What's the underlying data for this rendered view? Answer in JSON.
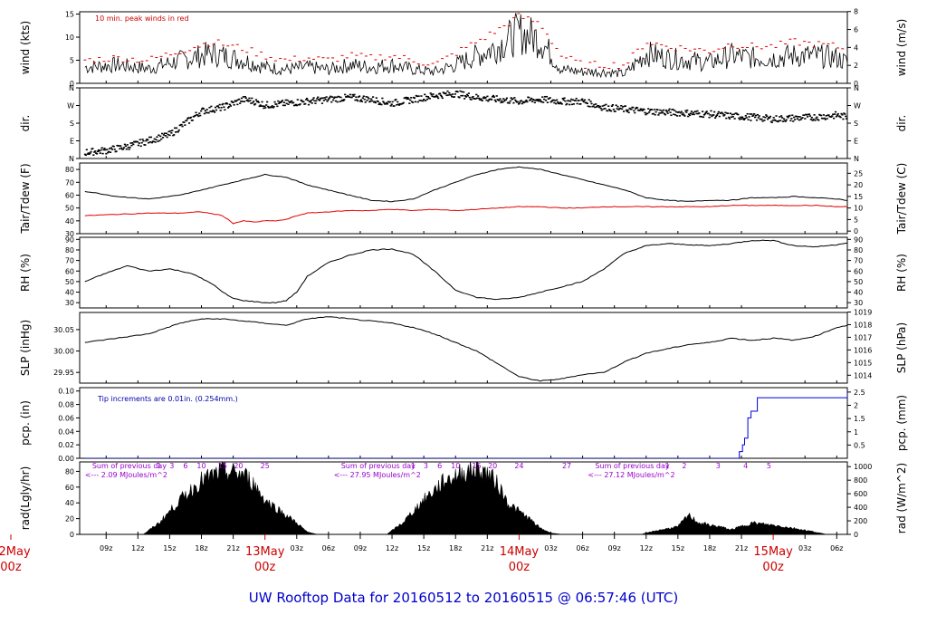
{
  "title": "UW Rooftop Data for 20160512  to  20160515 @ 06:57:46  (UTC)",
  "colors": {
    "black": "#000000",
    "red": "#e00000",
    "blue": "#0000dd",
    "purple": "#9900cc",
    "title": "#0000cc"
  },
  "x_axis": {
    "range_hours": [
      -17.5,
      55
    ],
    "tick_labels": [
      {
        "h": -15,
        "label": "09z"
      },
      {
        "h": -12,
        "label": "12z"
      },
      {
        "h": -9,
        "label": "15z"
      },
      {
        "h": -6,
        "label": "18z"
      },
      {
        "h": -3,
        "label": "21z"
      },
      {
        "h": 3,
        "label": "03z"
      },
      {
        "h": 6,
        "label": "06z"
      },
      {
        "h": 9,
        "label": "09z"
      },
      {
        "h": 12,
        "label": "12z"
      },
      {
        "h": 15,
        "label": "15z"
      },
      {
        "h": 18,
        "label": "18z"
      },
      {
        "h": 21,
        "label": "21z"
      },
      {
        "h": 27,
        "label": "03z"
      },
      {
        "h": 30,
        "label": "06z"
      },
      {
        "h": 33,
        "label": "09z"
      },
      {
        "h": 36,
        "label": "12z"
      },
      {
        "h": 39,
        "label": "15z"
      },
      {
        "h": 42,
        "label": "18z"
      },
      {
        "h": 45,
        "label": "21z"
      },
      {
        "h": 51,
        "label": "03z"
      },
      {
        "h": 54,
        "label": "06z"
      }
    ],
    "day_labels": [
      {
        "h": -24,
        "line1": "12May",
        "line2": "00z"
      },
      {
        "h": 0,
        "line1": "13May",
        "line2": "00z"
      },
      {
        "h": 24,
        "line1": "14May",
        "line2": "00z"
      },
      {
        "h": 48,
        "line1": "15May",
        "line2": "00z"
      }
    ]
  },
  "chart_data": [
    {
      "id": "wind",
      "type": "line",
      "ylabel": "wind (kts)",
      "ylabel_right": "wind (m/s)",
      "ylim": [
        0,
        15.5
      ],
      "yticks": [
        0,
        5,
        10,
        15
      ],
      "yticks_right": [
        0,
        2,
        4,
        6,
        8
      ],
      "right_factor": 1.944,
      "annotation": "10 min. peak winds in red",
      "series": [
        {
          "name": "speed",
          "color": "#000000",
          "x": [
            -17,
            -14,
            -11,
            -8,
            -5,
            -2,
            0,
            2,
            4,
            6,
            8,
            10,
            12,
            14,
            16,
            18,
            20,
            22,
            24,
            26,
            28,
            30,
            32,
            34,
            36,
            38,
            40,
            42,
            44,
            46,
            48,
            50,
            52,
            54,
            55
          ],
          "y": [
            3.5,
            4,
            3.2,
            5,
            6.5,
            5,
            3.5,
            3,
            3.5,
            3,
            4,
            3.5,
            4,
            3,
            2.5,
            4,
            6,
            8,
            11,
            9.5,
            3,
            2.5,
            2.5,
            2,
            6.5,
            5.5,
            5,
            4.5,
            6,
            5.5,
            5.5,
            6,
            6,
            5.5,
            4.5
          ]
        },
        {
          "name": "peak",
          "color": "#e00000",
          "x": [
            -17,
            -14,
            -11,
            -8,
            -5,
            -2,
            0,
            2,
            4,
            6,
            8,
            10,
            12,
            14,
            16,
            18,
            20,
            22,
            24,
            26,
            28,
            30,
            32,
            34,
            36,
            38,
            40,
            42,
            44,
            46,
            48,
            50,
            52,
            54,
            55
          ],
          "y": [
            5,
            5.5,
            5,
            7,
            9,
            7.5,
            6,
            5,
            5.5,
            5,
            6,
            5.5,
            6,
            5,
            4,
            6.5,
            9,
            11.5,
            14.5,
            13,
            6,
            4,
            4,
            4,
            9,
            8,
            7.5,
            7,
            8.5,
            8,
            8,
            9,
            8.5,
            8,
            7
          ]
        }
      ]
    },
    {
      "id": "dir",
      "type": "scatter",
      "ylabel": "dir.",
      "ylabel_right": "dir.",
      "ylim": [
        0,
        360
      ],
      "ytick_labels": [
        "N",
        "E",
        "S",
        "W",
        "N"
      ],
      "series": [
        {
          "name": "direction",
          "color": "#000000",
          "x": [
            -17,
            -15,
            -13,
            -11,
            -9,
            -7,
            -6,
            -5,
            -4,
            -3,
            -2,
            -1,
            0,
            1,
            2,
            4,
            6,
            8,
            10,
            12,
            14,
            16,
            18,
            20,
            22,
            24,
            26,
            28,
            30,
            32,
            34,
            36,
            38,
            40,
            42,
            44,
            46,
            48,
            50,
            52,
            54,
            55
          ],
          "y": [
            30,
            40,
            60,
            90,
            120,
            200,
            240,
            250,
            260,
            280,
            300,
            290,
            270,
            275,
            280,
            290,
            300,
            310,
            300,
            280,
            300,
            320,
            330,
            310,
            300,
            290,
            300,
            290,
            290,
            260,
            250,
            240,
            235,
            230,
            225,
            215,
            210,
            200,
            205,
            210,
            220,
            210
          ]
        }
      ]
    },
    {
      "id": "temp",
      "type": "line",
      "ylabel": "Tair/Tdew (F)",
      "ylabel_right": "Tair/Tdew (C)",
      "ylim": [
        30,
        85
      ],
      "yticks": [
        30,
        40,
        50,
        60,
        70,
        80
      ],
      "yticks_right": [
        0,
        5,
        10,
        15,
        20,
        25
      ],
      "series": [
        {
          "name": "Tair",
          "color": "#000000",
          "x": [
            -17,
            -14,
            -11,
            -8,
            -5,
            -2,
            0,
            2,
            4,
            6,
            8,
            10,
            12,
            14,
            16,
            18,
            20,
            22,
            24,
            26,
            28,
            30,
            32,
            34,
            36,
            38,
            40,
            42,
            44,
            46,
            48,
            50,
            52,
            54,
            55
          ],
          "y": [
            63,
            59,
            57,
            60,
            66,
            72,
            76,
            74,
            68,
            64,
            60,
            56,
            55,
            57,
            64,
            70,
            76,
            80,
            82,
            80,
            76,
            72,
            68,
            64,
            58,
            56,
            55,
            56,
            56,
            58,
            58,
            59,
            58,
            57,
            56
          ]
        },
        {
          "name": "Tdew",
          "color": "#e00000",
          "x": [
            -17,
            -14,
            -11,
            -8,
            -6,
            -4,
            -3,
            -2,
            -1,
            0,
            1,
            2,
            3,
            4,
            6,
            8,
            10,
            12,
            14,
            16,
            18,
            20,
            22,
            24,
            26,
            28,
            30,
            32,
            34,
            36,
            38,
            40,
            42,
            44,
            46,
            48,
            50,
            52,
            54,
            55
          ],
          "y": [
            44,
            45,
            46,
            46,
            47,
            44,
            38,
            40,
            39,
            40,
            40,
            41,
            44,
            46,
            47,
            48,
            48,
            49,
            48,
            49,
            48,
            49,
            50,
            51,
            51,
            50,
            50,
            51,
            51,
            51,
            51,
            51,
            51,
            52,
            52,
            52,
            52,
            52,
            51,
            51
          ]
        }
      ]
    },
    {
      "id": "rh",
      "type": "line",
      "ylabel": "RH (%)",
      "ylabel_right": "RH (%)",
      "ylim": [
        25,
        92
      ],
      "yticks": [
        30,
        40,
        50,
        60,
        70,
        80,
        90
      ],
      "yticks_right": [
        30,
        40,
        50,
        60,
        70,
        80,
        90
      ],
      "series": [
        {
          "name": "RH",
          "color": "#000000",
          "x": [
            -17,
            -15,
            -13,
            -11,
            -9,
            -7,
            -5,
            -4,
            -3,
            -2,
            -1,
            0,
            1,
            2,
            3,
            4,
            6,
            8,
            10,
            12,
            14,
            16,
            18,
            20,
            22,
            24,
            26,
            28,
            30,
            32,
            34,
            36,
            38,
            40,
            42,
            44,
            46,
            48,
            50,
            52,
            54,
            55
          ],
          "y": [
            50,
            58,
            65,
            60,
            62,
            58,
            48,
            40,
            34,
            32,
            31,
            30,
            30,
            32,
            40,
            55,
            68,
            75,
            80,
            81,
            76,
            60,
            42,
            35,
            33,
            35,
            40,
            45,
            50,
            62,
            77,
            84,
            86,
            85,
            84,
            86,
            89,
            89,
            84,
            83,
            85,
            87
          ]
        }
      ]
    },
    {
      "id": "slp",
      "type": "line",
      "ylabel": "SLP (inHg)",
      "ylabel_right": "SLP (hPa)",
      "ylim": [
        29.925,
        30.09
      ],
      "yticks": [
        29.95,
        30.0,
        30.05
      ],
      "yticks_right": [
        1014,
        1015,
        1016,
        1017,
        1018,
        1019
      ],
      "series": [
        {
          "name": "SLP",
          "color": "#000000",
          "x": [
            -17,
            -14,
            -11,
            -8,
            -6,
            -4,
            -2,
            0,
            2,
            4,
            6,
            8,
            10,
            12,
            14,
            16,
            18,
            20,
            22,
            24,
            26,
            28,
            30,
            32,
            34,
            36,
            38,
            40,
            42,
            44,
            46,
            48,
            50,
            52,
            54,
            55
          ],
          "y": [
            30.02,
            30.03,
            30.04,
            30.065,
            30.075,
            30.075,
            30.07,
            30.065,
            30.06,
            30.075,
            30.08,
            30.075,
            30.07,
            30.065,
            30.055,
            30.04,
            30.02,
            30.0,
            29.97,
            29.94,
            29.93,
            29.935,
            29.945,
            29.95,
            29.975,
            29.995,
            30.005,
            30.015,
            30.02,
            30.03,
            30.025,
            30.03,
            30.025,
            30.035,
            30.055,
            30.06
          ]
        }
      ]
    },
    {
      "id": "pcp",
      "type": "line",
      "ylabel": "pcp. (in)",
      "ylabel_right": "pcp. (mm)",
      "ylim": [
        0,
        0.105
      ],
      "yticks": [
        0.0,
        0.02,
        0.04,
        0.06,
        0.08,
        0.1
      ],
      "yticks_right": [
        0.5,
        1,
        1.5,
        2,
        2.5
      ],
      "annotation": "Tip increments are 0.01in. (0.254mm.)",
      "series": [
        {
          "name": "precip",
          "color": "#0000dd",
          "x": [
            -17,
            44.5,
            44.8,
            45.1,
            45.3,
            45.6,
            45.9,
            46.5,
            54.8,
            55
          ],
          "y": [
            0,
            0,
            0.01,
            0.02,
            0.03,
            0.06,
            0.07,
            0.09,
            0.09,
            0.1
          ]
        }
      ]
    },
    {
      "id": "rad",
      "type": "area",
      "ylabel": "rad(Lgly/hr)",
      "ylabel_right": "rad (W/m^2)",
      "ylim": [
        0,
        92
      ],
      "yticks": [
        0,
        20,
        40,
        60,
        80
      ],
      "yticks_right": [
        0,
        200,
        400,
        600,
        800,
        1000
      ],
      "series": [
        {
          "name": "radiation",
          "color": "#000000",
          "x": [
            -17,
            -11.5,
            -10,
            -8,
            -6,
            -4,
            -2,
            -1,
            0,
            1,
            2,
            3,
            4,
            5,
            6,
            11.5,
            13,
            15,
            17,
            19,
            20,
            21,
            22,
            23,
            24,
            25,
            26,
            27,
            28,
            29,
            30,
            35.5,
            37,
            39,
            40,
            41,
            42,
            43,
            44,
            46,
            48,
            50,
            52,
            53,
            55
          ],
          "y": [
            0,
            0,
            15,
            45,
            70,
            82,
            78,
            65,
            45,
            35,
            25,
            15,
            3,
            0,
            0,
            0,
            15,
            45,
            70,
            82,
            85,
            80,
            65,
            40,
            30,
            20,
            8,
            2,
            0,
            0,
            0,
            0,
            5,
            10,
            25,
            15,
            12,
            10,
            6,
            15,
            12,
            8,
            3,
            0,
            0
          ]
        }
      ],
      "annotations": [
        {
          "text": "Sum of previous day",
          "h": -17
        },
        {
          "text": "<--- 2.09 MJoules/m^2",
          "h": -17
        },
        {
          "text": "Sum of previous day",
          "h": 6.5
        },
        {
          "text": "<--- 27.95 MJoules/m^2",
          "h": 6.5
        },
        {
          "text": "Sum of previous day",
          "h": 30.5
        },
        {
          "text": "<--- 27.12 MJoules/m^2",
          "h": 30.5
        }
      ],
      "hour_labels": [
        {
          "h": -10,
          "t": "1"
        },
        {
          "h": -8.8,
          "t": "3"
        },
        {
          "h": -7.5,
          "t": "6"
        },
        {
          "h": -6,
          "t": "10"
        },
        {
          "h": -4,
          "t": "15"
        },
        {
          "h": -2.5,
          "t": "20"
        },
        {
          "h": 0,
          "t": "25"
        },
        {
          "h": 14,
          "t": "1"
        },
        {
          "h": 15.2,
          "t": "3"
        },
        {
          "h": 16.5,
          "t": "6"
        },
        {
          "h": 18,
          "t": "10"
        },
        {
          "h": 20,
          "t": "15"
        },
        {
          "h": 21.5,
          "t": "20"
        },
        {
          "h": 24,
          "t": "24"
        },
        {
          "h": 28.5,
          "t": "27"
        },
        {
          "h": 38,
          "t": "1"
        },
        {
          "h": 39.6,
          "t": "2"
        },
        {
          "h": 42.8,
          "t": "3"
        },
        {
          "h": 45.4,
          "t": "4"
        },
        {
          "h": 47.6,
          "t": "5"
        }
      ]
    }
  ]
}
